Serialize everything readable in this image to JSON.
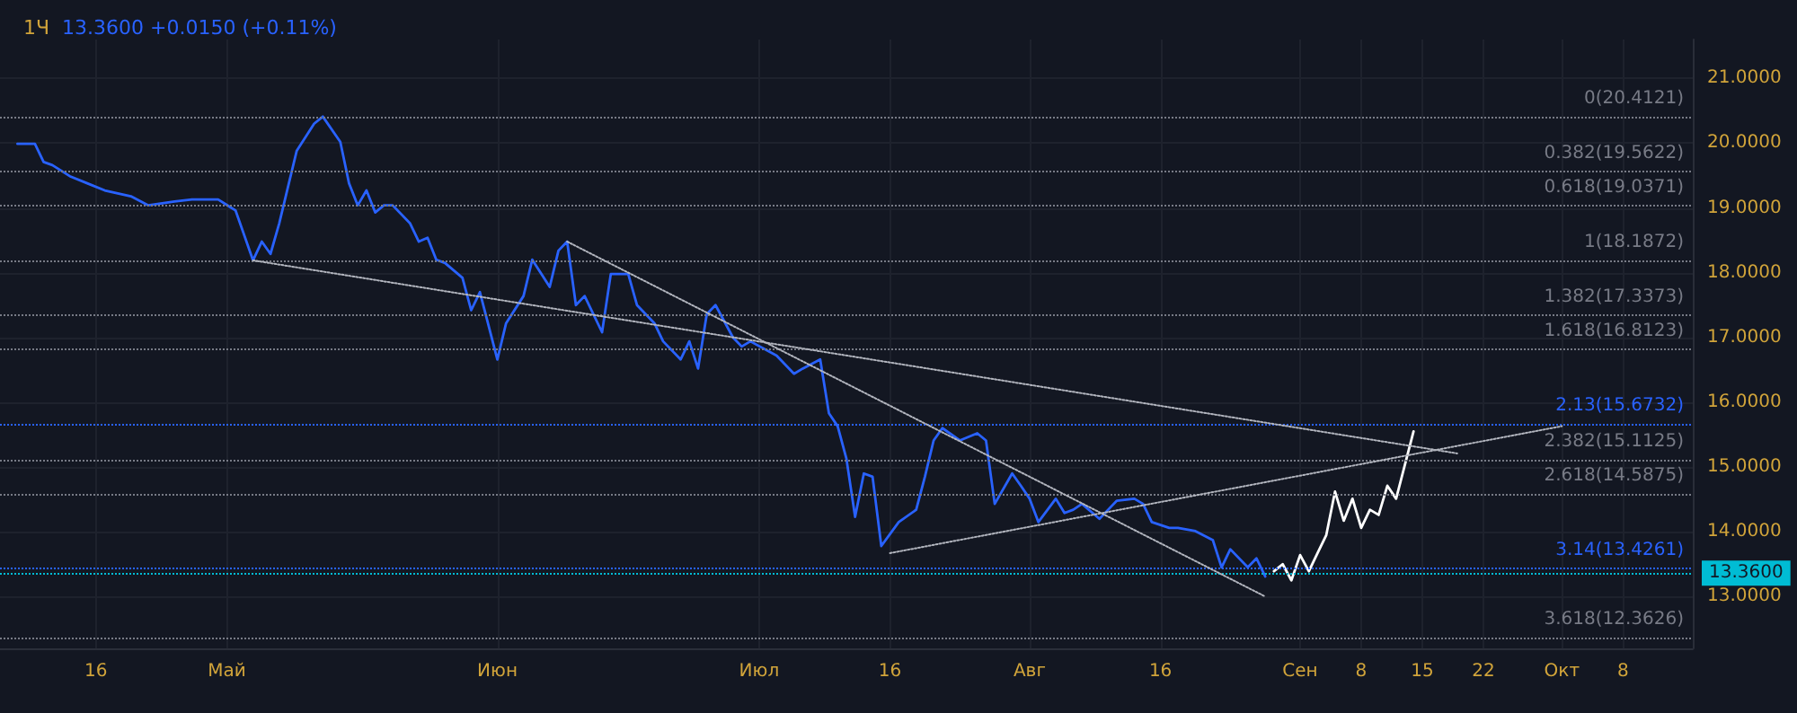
{
  "chart_data": {
    "type": "line",
    "title": "1Ч",
    "subtitle": "13.3600 +0.0150 (+0.11%)",
    "xlim": [
      "--04-05",
      "--10-16"
    ],
    "xticks": [
      {
        "value": "--04-16",
        "label": "16"
      },
      {
        "value": "--05-01",
        "label": "Май"
      },
      {
        "value": "--06-01",
        "label": "Июн"
      },
      {
        "value": "--07-01",
        "label": "Июл"
      },
      {
        "value": "--07-16",
        "label": "16"
      },
      {
        "value": "--08-01",
        "label": "Авг"
      },
      {
        "value": "--08-16",
        "label": "16"
      },
      {
        "value": "--09-01",
        "label": "Сен"
      },
      {
        "value": "--09-08",
        "label": "8"
      },
      {
        "value": "--09-15",
        "label": "15"
      },
      {
        "value": "--09-22",
        "label": "22"
      },
      {
        "value": "--10-01",
        "label": "Окт"
      },
      {
        "value": "--10-08",
        "label": "8"
      }
    ],
    "ylim": [
      12.2,
      21.6
    ],
    "yticks": [
      {
        "value": 13,
        "label": "13.0000"
      },
      {
        "value": 14,
        "label": "14.0000"
      },
      {
        "value": 15,
        "label": "15.0000"
      },
      {
        "value": 16,
        "label": "16.0000"
      },
      {
        "value": 17,
        "label": "17.0000"
      },
      {
        "value": 18,
        "label": "18.0000"
      },
      {
        "value": 19,
        "label": "19.0000"
      },
      {
        "value": 20,
        "label": "20.0000"
      },
      {
        "value": 21,
        "label": "21.0000"
      }
    ],
    "grid": true,
    "marker": "none",
    "series": [
      {
        "color": "#2962ff",
        "line_style": "solid",
        "x": [
          "--04-07",
          "--04-09",
          "--04-10",
          "--04-11",
          "--04-13",
          "--04-15",
          "--04-17",
          "--04-20",
          "--04-22",
          "--04-25",
          "--04-27",
          "--04-30",
          "--05-02",
          "--05-04",
          "--05-05",
          "--05-06",
          "--05-07",
          "--05-08",
          "--05-09",
          "--05-11",
          "--05-12",
          "--05-14",
          "--05-15",
          "--05-16",
          "--05-17",
          "--05-18",
          "--05-19",
          "--05-20",
          "--05-22",
          "--05-23",
          "--05-24",
          "--05-25",
          "--05-26",
          "--05-28",
          "--05-29",
          "--05-30",
          "--06-01",
          "--06-02",
          "--06-04",
          "--06-05",
          "--06-07",
          "--06-08",
          "--06-09",
          "--06-10",
          "--06-11",
          "--06-13",
          "--06-14",
          "--06-16",
          "--06-17",
          "--06-19",
          "--06-20",
          "--06-22",
          "--06-23",
          "--06-24",
          "--06-25",
          "--06-26",
          "--06-28",
          "--06-29",
          "--06-30",
          "--07-03",
          "--07-05",
          "--07-06",
          "--07-08",
          "--07-09",
          "--07-10",
          "--07-11",
          "--07-12",
          "--07-13",
          "--07-14",
          "--07-15",
          "--07-17",
          "--07-19",
          "--07-20",
          "--07-21",
          "--07-22",
          "--07-24",
          "--07-26",
          "--07-27",
          "--07-28",
          "--07-30",
          "--07-31",
          "--08-01",
          "--08-02",
          "--08-04",
          "--08-05",
          "--08-06",
          "--08-07",
          "--08-09",
          "--08-10",
          "--08-11",
          "--08-13",
          "--08-14",
          "--08-15",
          "--08-17",
          "--08-18",
          "--08-20",
          "--08-22",
          "--08-23",
          "--08-24",
          "--08-26",
          "--08-27",
          "--08-28"
        ],
        "values": [
          19.99,
          19.99,
          19.71,
          19.66,
          19.49,
          19.38,
          19.27,
          19.18,
          19.04,
          19.1,
          19.13,
          19.13,
          18.96,
          18.19,
          18.48,
          18.29,
          18.76,
          19.32,
          19.88,
          20.3,
          20.41,
          20.02,
          19.38,
          19.04,
          19.27,
          18.93,
          19.04,
          19.04,
          18.76,
          18.48,
          18.54,
          18.2,
          18.15,
          17.92,
          17.42,
          17.7,
          16.66,
          17.22,
          17.64,
          18.2,
          17.78,
          18.34,
          18.48,
          17.5,
          17.64,
          17.08,
          17.98,
          17.98,
          17.5,
          17.22,
          16.94,
          16.66,
          16.94,
          16.52,
          17.36,
          17.5,
          17.0,
          16.86,
          16.94,
          16.72,
          16.44,
          16.52,
          16.66,
          15.83,
          15.63,
          15.13,
          14.23,
          14.9,
          14.85,
          13.78,
          14.15,
          14.34,
          14.85,
          15.41,
          15.6,
          15.41,
          15.52,
          15.41,
          14.43,
          14.9,
          14.71,
          14.51,
          14.15,
          14.51,
          14.29,
          14.34,
          14.43,
          14.2,
          14.34,
          14.48,
          14.51,
          14.43,
          14.15,
          14.06,
          14.06,
          14.01,
          13.87,
          13.45,
          13.73,
          13.45,
          13.59,
          13.31
        ]
      },
      {
        "color": "#ffffff",
        "line_style": "solid",
        "x": [
          "--08-29",
          "--08-30",
          "--08-31",
          "--09-01",
          "--09-02",
          "--09-03",
          "--09-04",
          "--09-05",
          "--09-06",
          "--09-07",
          "--09-08",
          "--09-09",
          "--09-10",
          "--09-11",
          "--09-12",
          "--09-14"
        ],
        "values": [
          13.39,
          13.5,
          13.25,
          13.64,
          13.39,
          13.67,
          13.95,
          14.62,
          14.17,
          14.51,
          14.06,
          14.34,
          14.26,
          14.71,
          14.51,
          15.55
        ]
      },
      {
        "color": "#b2b5be",
        "line_style": "dotted",
        "x": [
          "--05-04",
          "--09-19"
        ],
        "values": [
          18.19,
          15.21
        ]
      },
      {
        "color": "#b2b5be",
        "line_style": "dotted",
        "x": [
          "--06-09",
          "--08-28"
        ],
        "values": [
          18.48,
          13.0
        ]
      },
      {
        "color": "#b2b5be",
        "line_style": "dotted",
        "x": [
          "--07-16",
          "--10-01"
        ],
        "values": [
          13.67,
          15.63
        ]
      }
    ],
    "ref_lines": [
      {
        "axis": "y",
        "value": 20.4121,
        "label": "0(20.4121)",
        "color": "#787b86",
        "line_style": "dotted"
      },
      {
        "axis": "y",
        "value": 19.5622,
        "label": "0.382(19.5622)",
        "color": "#787b86",
        "line_style": "dotted"
      },
      {
        "axis": "y",
        "value": 19.0371,
        "label": "0.618(19.0371)",
        "color": "#787b86",
        "line_style": "dotted"
      },
      {
        "axis": "y",
        "value": 18.1872,
        "label": "1(18.1872)",
        "color": "#787b86",
        "line_style": "dotted"
      },
      {
        "axis": "y",
        "value": 17.3373,
        "label": "1.382(17.3373)",
        "color": "#787b86",
        "line_style": "dotted"
      },
      {
        "axis": "y",
        "value": 16.8123,
        "label": "1.618(16.8123)",
        "color": "#787b86",
        "line_style": "dotted"
      },
      {
        "axis": "y",
        "value": 15.6732,
        "label": "2.13(15.6732)",
        "color": "#2962ff",
        "line_style": "dotted"
      },
      {
        "axis": "y",
        "value": 15.1125,
        "label": "2.382(15.1125)",
        "color": "#787b86",
        "line_style": "dotted"
      },
      {
        "axis": "y",
        "value": 14.5875,
        "label": "2.618(14.5875)",
        "color": "#787b86",
        "line_style": "dotted"
      },
      {
        "axis": "y",
        "value": 13.4261,
        "label": "3.14(13.4261)",
        "color": "#2962ff",
        "line_style": "dotted"
      },
      {
        "axis": "y",
        "value": 12.3626,
        "label": "3.618(12.3626)",
        "color": "#787b86",
        "line_style": "dotted"
      },
      {
        "axis": "y",
        "value": 13.36,
        "label": "13.3600",
        "color": "#00bcd4",
        "line_style": "dotted"
      }
    ]
  }
}
